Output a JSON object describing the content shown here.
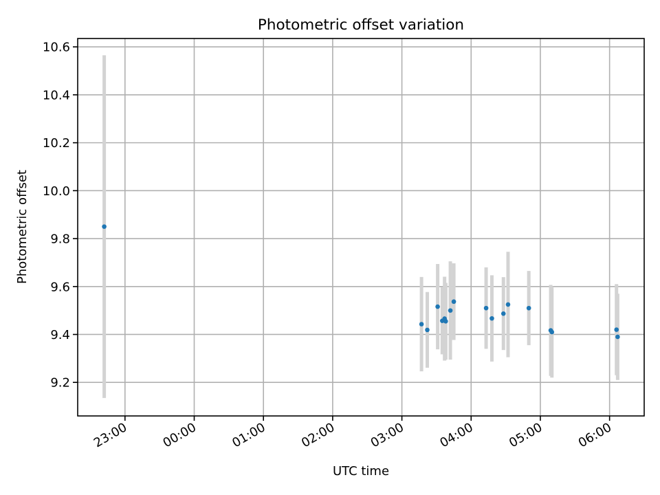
{
  "chart_data": {
    "type": "scatter",
    "title": "Photometric offset variation",
    "xlabel": "UTC time",
    "ylabel": "Photometric offset",
    "x_ticks": [
      "23:00",
      "00:00",
      "01:00",
      "02:00",
      "03:00",
      "04:00",
      "05:00",
      "06:00"
    ],
    "y_ticks": [
      "9.2",
      "9.4",
      "9.6",
      "9.8",
      "10.0",
      "10.2",
      "10.4",
      "10.6"
    ],
    "xlim": [
      "22:19",
      "06:30"
    ],
    "ylim": [
      9.06,
      10.635
    ],
    "grid": true,
    "legend": "none",
    "colors": {
      "point": "#1f77b4",
      "errorbar": "#d3d3d3"
    },
    "points": [
      {
        "x": "22:42",
        "y": 9.85,
        "err": 0.715
      },
      {
        "x": "03:17",
        "y": 9.443,
        "err": 0.197
      },
      {
        "x": "03:22",
        "y": 9.419,
        "err": 0.158
      },
      {
        "x": "03:31",
        "y": 9.516,
        "err": 0.178
      },
      {
        "x": "03:35",
        "y": 9.457,
        "err": 0.14
      },
      {
        "x": "03:37",
        "y": 9.466,
        "err": 0.175
      },
      {
        "x": "03:38",
        "y": 9.455,
        "err": 0.16
      },
      {
        "x": "03:42",
        "y": 9.5,
        "err": 0.205
      },
      {
        "x": "03:45",
        "y": 9.537,
        "err": 0.16
      },
      {
        "x": "04:13",
        "y": 9.51,
        "err": 0.17
      },
      {
        "x": "04:18",
        "y": 9.467,
        "err": 0.18
      },
      {
        "x": "04:28",
        "y": 9.487,
        "err": 0.152
      },
      {
        "x": "04:32",
        "y": 9.525,
        "err": 0.22
      },
      {
        "x": "04:50",
        "y": 9.51,
        "err": 0.155
      },
      {
        "x": "05:09",
        "y": 9.417,
        "err": 0.19
      },
      {
        "x": "05:10",
        "y": 9.41,
        "err": 0.19
      },
      {
        "x": "06:06",
        "y": 9.42,
        "err": 0.19
      },
      {
        "x": "06:07",
        "y": 9.39,
        "err": 0.18
      }
    ]
  }
}
